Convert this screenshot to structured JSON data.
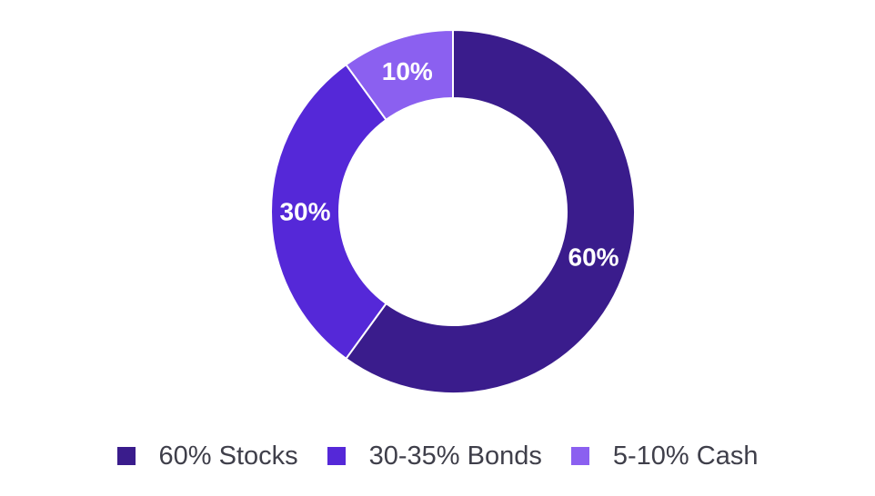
{
  "chart_data": {
    "type": "pie",
    "style": "donut",
    "slices": [
      {
        "label": "60%",
        "value": 60,
        "color": "#3a1c8c"
      },
      {
        "label": "30%",
        "value": 30,
        "color": "#5528d8"
      },
      {
        "label": "10%",
        "value": 10,
        "color": "#8b60f0"
      }
    ],
    "legend": {
      "placement": "bottom",
      "entries": [
        {
          "text": "60% Stocks",
          "color": "#3a1c8c"
        },
        {
          "text": "30-35% Bonds",
          "color": "#5528d8"
        },
        {
          "text": "5-10% Cash",
          "color": "#8b60f0"
        }
      ]
    }
  }
}
